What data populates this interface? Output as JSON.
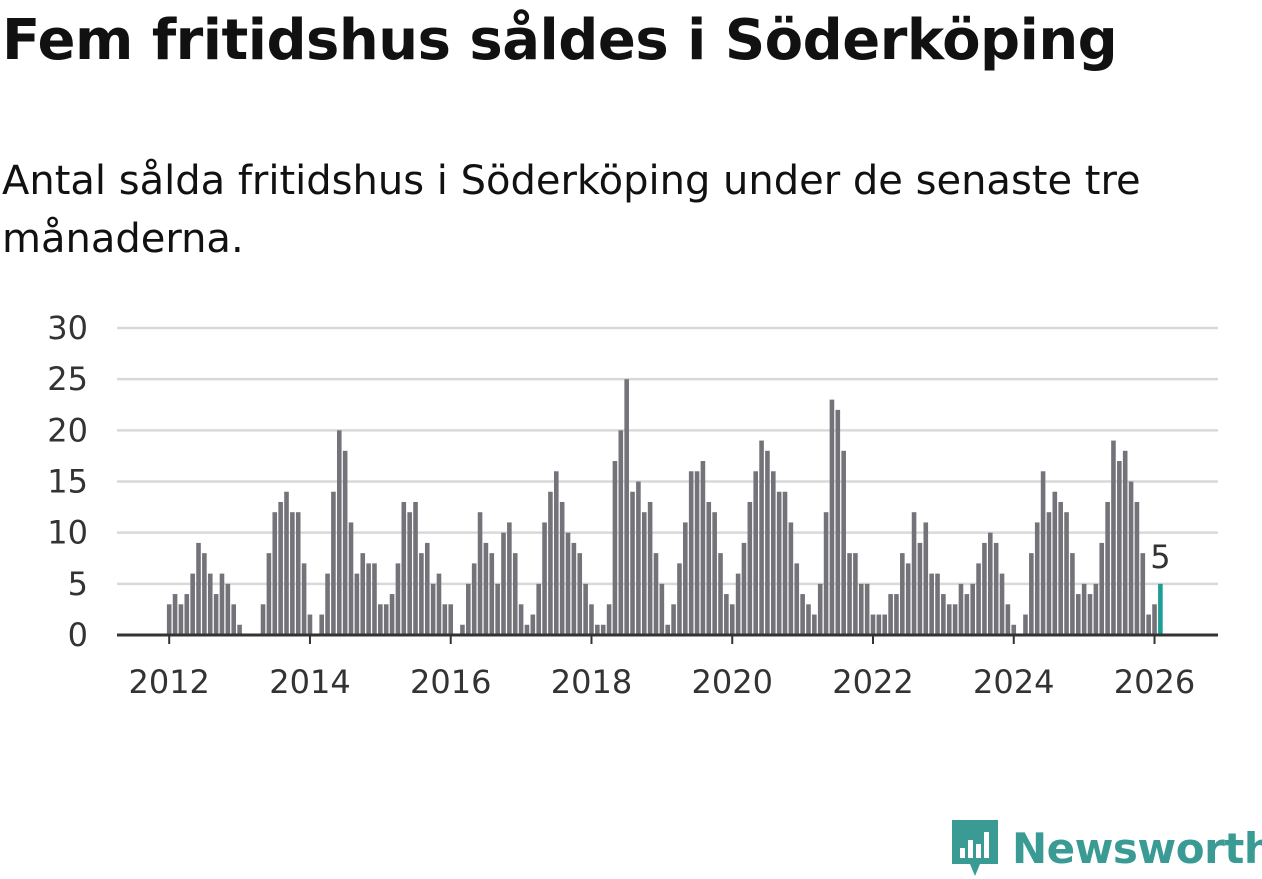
{
  "title": "Fem fritidshus såldes i Söderköping",
  "subtitle": "Antal sålda fritidshus i Söderköping under de senaste tre månaderna.",
  "brand": {
    "name": "Newsworthy",
    "icon": "newsworthy-logo-icon",
    "color": "#3a9a94"
  },
  "colors": {
    "bar": "#74737a",
    "highlight": "#1a9e96",
    "grid": "#d9d9d9",
    "axis": "#333333"
  },
  "chart_data": {
    "type": "bar",
    "title": "Fem fritidshus såldes i Söderköping",
    "subtitle": "Antal sålda fritidshus i Söderköping under de senaste tre månaderna.",
    "xlabel": "",
    "ylabel": "",
    "ylim": [
      0,
      30
    ],
    "yticks": [
      "0",
      "5",
      "10",
      "15",
      "20",
      "25",
      "30"
    ],
    "xticks": [
      "2012",
      "2014",
      "2016",
      "2018",
      "2020",
      "2022",
      "2024",
      "2026"
    ],
    "start": "2012-01",
    "end": "2026-02",
    "highlight_label": "5",
    "values": [
      3,
      4,
      3,
      4,
      6,
      9,
      8,
      6,
      4,
      6,
      5,
      3,
      1,
      0,
      0,
      0,
      3,
      8,
      12,
      13,
      14,
      12,
      12,
      7,
      2,
      0,
      2,
      6,
      14,
      20,
      18,
      11,
      6,
      8,
      7,
      7,
      3,
      3,
      4,
      7,
      13,
      12,
      13,
      8,
      9,
      5,
      6,
      3,
      3,
      0,
      1,
      5,
      7,
      12,
      9,
      8,
      5,
      10,
      11,
      8,
      3,
      1,
      2,
      5,
      11,
      14,
      16,
      13,
      10,
      9,
      8,
      5,
      3,
      1,
      1,
      3,
      17,
      20,
      25,
      14,
      15,
      12,
      13,
      8,
      5,
      1,
      3,
      7,
      11,
      16,
      16,
      17,
      13,
      12,
      8,
      4,
      3,
      6,
      9,
      13,
      16,
      19,
      18,
      16,
      14,
      14,
      11,
      7,
      4,
      3,
      2,
      5,
      12,
      23,
      22,
      18,
      8,
      8,
      5,
      5,
      2,
      2,
      2,
      4,
      4,
      8,
      7,
      12,
      9,
      11,
      6,
      6,
      4,
      3,
      3,
      5,
      4,
      5,
      7,
      9,
      10,
      9,
      6,
      3,
      1,
      0,
      2,
      8,
      11,
      16,
      12,
      14,
      13,
      12,
      8,
      4,
      5,
      4,
      5,
      9,
      13,
      19,
      17,
      18,
      15,
      13,
      8,
      2,
      3,
      5
    ]
  }
}
